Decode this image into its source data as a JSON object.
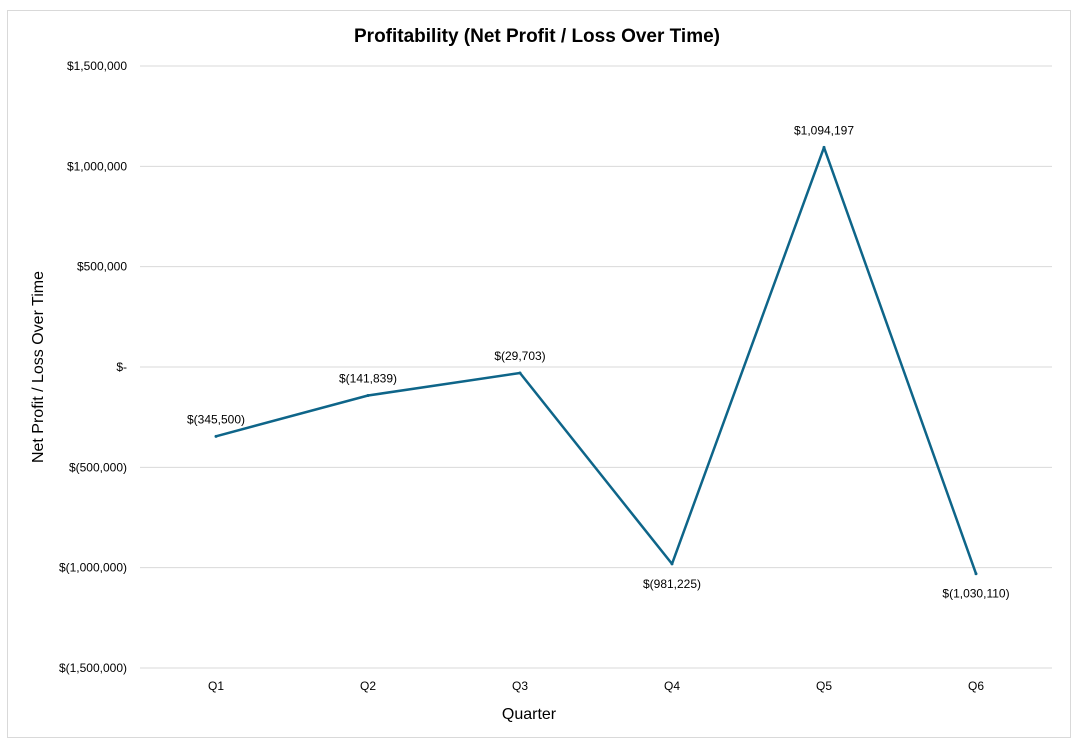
{
  "chart_data": {
    "type": "line",
    "title": "Profitability (Net Profit / Loss Over Time)",
    "xlabel": "Quarter",
    "ylabel": "Net Profit / Loss Over Time",
    "categories": [
      "Q1",
      "Q2",
      "Q3",
      "Q4",
      "Q5",
      "Q6"
    ],
    "series": [
      {
        "values": [
          -345500,
          -141839,
          -29703,
          -981225,
          1094197,
          -1030110
        ],
        "labels": [
          "$(345,500)",
          "$(141,839)",
          "$(29,703)",
          "$(981,225)",
          "$1,094,197",
          "$(1,030,110)"
        ]
      }
    ],
    "ylim": [
      -1500000,
      1500000
    ],
    "yticks": [
      1500000,
      1000000,
      500000,
      0,
      -500000,
      -1000000,
      -1500000
    ],
    "ytick_labels": [
      "$1,500,000",
      "$1,000,000",
      "$500,000",
      "$-",
      "$(500,000)",
      "$(1,000,000)",
      "$(1,500,000)"
    ],
    "grid": true,
    "legend": "none",
    "line_color": "#0e6589",
    "grid_color": "#d9d9d9"
  }
}
